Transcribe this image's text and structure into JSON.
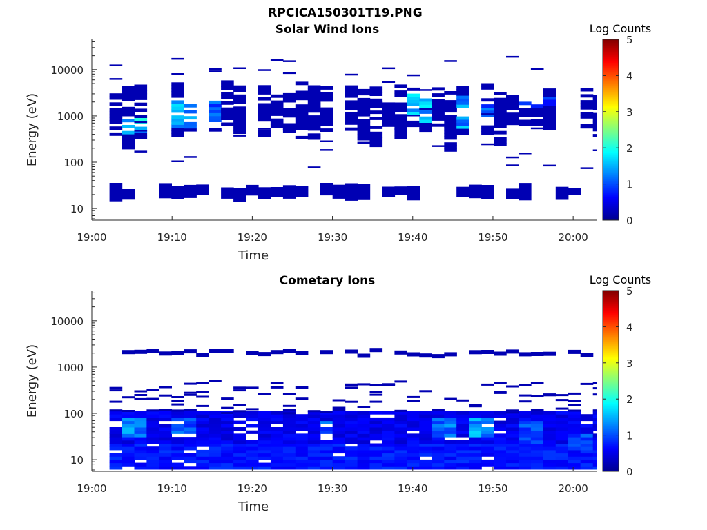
{
  "figure": {
    "title": "RPCICA150301T19.PNG"
  },
  "palette": {
    "background": "#ffffff",
    "axis": "#262626",
    "colormap": [
      "#00008f",
      "#0000ff",
      "#0080ff",
      "#00ffff",
      "#80ff80",
      "#ffff00",
      "#ff8000",
      "#ff0000",
      "#800000"
    ]
  },
  "chart_data": [
    {
      "type": "heatmap",
      "title": "Solar Wind Ions",
      "xlabel": "Time",
      "ylabel": "Energy (eV)",
      "x_range": [
        "19:00",
        "20:03"
      ],
      "x_ticks": [
        "19:00",
        "19:10",
        "19:20",
        "19:30",
        "19:40",
        "19:50",
        "20:00"
      ],
      "y_scale": "log",
      "y_range": [
        5.6,
        45000
      ],
      "y_ticks": [
        "10",
        "100",
        "1000",
        "10000"
      ],
      "colorbar": {
        "label": "Log Counts",
        "range": [
          0,
          5
        ],
        "ticks": [
          "0",
          "1",
          "2",
          "3",
          "4",
          "5"
        ]
      },
      "highlights": [
        {
          "start": "19:03",
          "end": "19:06",
          "emin": 400,
          "emax": 900,
          "level": 1.6
        },
        {
          "start": "19:06",
          "end": "19:09",
          "emin": 500,
          "emax": 2200,
          "level": 1.2
        },
        {
          "start": "19:09",
          "end": "19:12",
          "emin": 500,
          "emax": 2500,
          "level": 1.5
        },
        {
          "start": "19:12",
          "end": "19:15",
          "emin": 700,
          "emax": 2500,
          "level": 1.0
        },
        {
          "start": "19:38",
          "end": "19:41",
          "emin": 700,
          "emax": 3500,
          "level": 1.5
        },
        {
          "start": "19:44",
          "end": "19:47",
          "emin": 500,
          "emax": 2500,
          "level": 1.4
        },
        {
          "start": "19:47",
          "end": "19:50",
          "emin": 800,
          "emax": 2000,
          "level": 1.0
        },
        {
          "start": "19:53",
          "end": "19:57",
          "emin": 1500,
          "emax": 2400,
          "level": 0.9
        }
      ]
    },
    {
      "type": "heatmap",
      "title": "Cometary Ions",
      "xlabel": "Time",
      "ylabel": "Energy (eV)",
      "x_range": [
        "19:00",
        "20:03"
      ],
      "x_ticks": [
        "19:00",
        "19:10",
        "19:20",
        "19:30",
        "19:40",
        "19:50",
        "20:00"
      ],
      "y_scale": "log",
      "y_range": [
        5.6,
        45000
      ],
      "y_ticks": [
        "10",
        "100",
        "1000",
        "10000"
      ],
      "colorbar": {
        "label": "Log Counts",
        "range": [
          0,
          5
        ],
        "ticks": [
          "0",
          "1",
          "2",
          "3",
          "4",
          "5"
        ]
      },
      "highlights": [
        {
          "start": "19:03",
          "end": "19:06",
          "emin": 30,
          "emax": 70,
          "level": 1.3
        },
        {
          "start": "19:09",
          "end": "19:12",
          "emin": 30,
          "emax": 80,
          "level": 1.1
        },
        {
          "start": "19:27",
          "end": "19:30",
          "emin": 30,
          "emax": 60,
          "level": 1.1
        },
        {
          "start": "19:41",
          "end": "19:44",
          "emin": 30,
          "emax": 70,
          "level": 1.2
        },
        {
          "start": "19:47",
          "end": "19:50",
          "emin": 30,
          "emax": 70,
          "level": 1.4
        },
        {
          "start": "19:53",
          "end": "19:56",
          "emin": 20,
          "emax": 60,
          "level": 1.0
        },
        {
          "start": "19:59",
          "end": "20:02",
          "emin": 15,
          "emax": 35,
          "level": 1.0
        }
      ]
    }
  ]
}
